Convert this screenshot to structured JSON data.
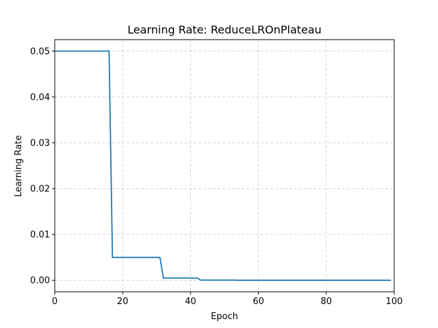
{
  "chart_data": {
    "type": "line",
    "title": "Learning Rate: ReduceLROnPlateau",
    "xlabel": "Epoch",
    "ylabel": "Learning Rate",
    "xlim": [
      0,
      100
    ],
    "ylim": [
      -0.0025,
      0.0525
    ],
    "xticks": [
      0,
      20,
      40,
      60,
      80,
      100
    ],
    "xtick_labels": [
      "0",
      "20",
      "40",
      "60",
      "80",
      "100"
    ],
    "yticks": [
      0,
      0.01,
      0.02,
      0.03,
      0.04,
      0.05
    ],
    "ytick_labels": [
      "0.00",
      "0.01",
      "0.02",
      "0.03",
      "0.04",
      "0.05"
    ],
    "grid": true,
    "legend": false,
    "series": [
      {
        "color": "#1f77b4",
        "x": [
          0,
          16,
          17,
          31,
          32,
          42,
          43,
          53,
          54,
          99
        ],
        "y": [
          0.05,
          0.05,
          0.005,
          0.005,
          0.0005,
          0.0005,
          5e-05,
          5e-05,
          5e-06,
          5e-06
        ]
      }
    ]
  }
}
